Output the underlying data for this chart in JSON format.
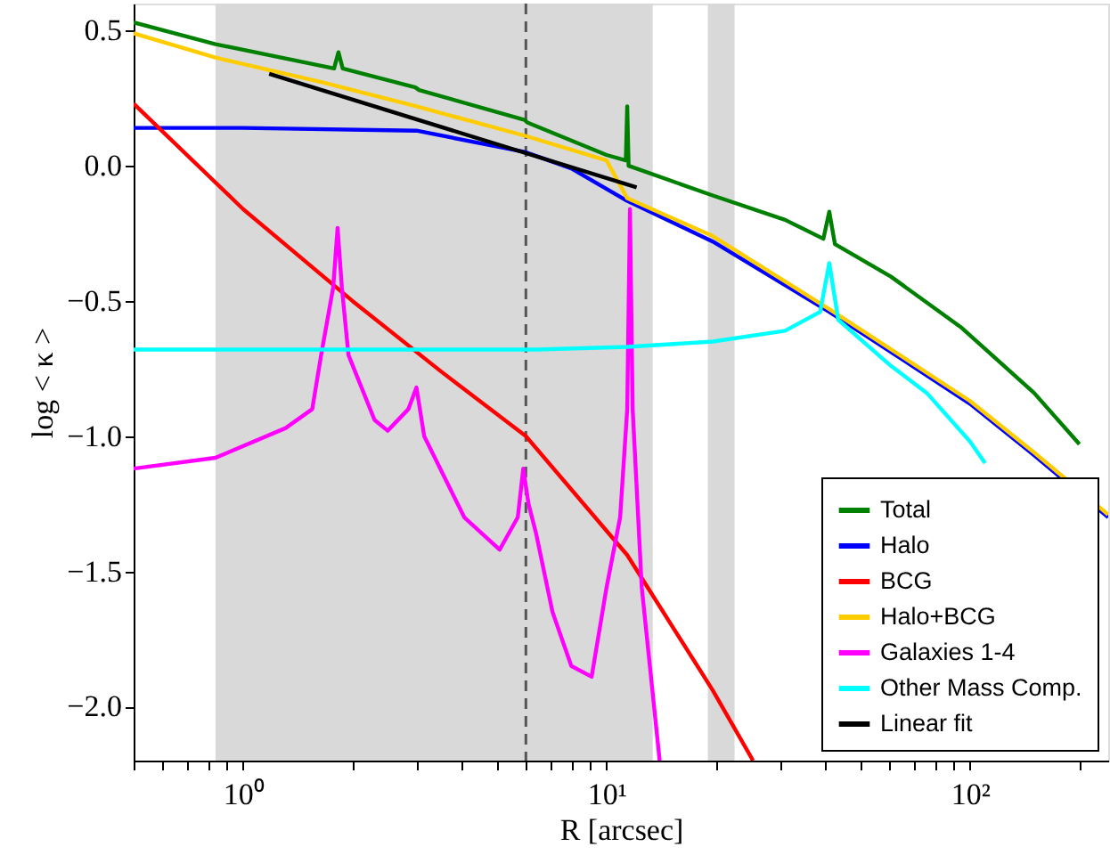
{
  "chart_data": {
    "type": "line",
    "xlabel": "R [arcsec]",
    "ylabel": "log < κ >",
    "log": "x",
    "xlim": [
      0.5,
      240
    ],
    "ylim": [
      -2.2,
      0.6
    ],
    "xticks": [
      {
        "value": 0.5,
        "label": null
      },
      {
        "value": 0.6,
        "label": null
      },
      {
        "value": 0.7,
        "label": null
      },
      {
        "value": 0.8,
        "label": null
      },
      {
        "value": 0.9,
        "label": null
      },
      {
        "value": 1,
        "label": "10⁰"
      },
      {
        "value": 2,
        "label": null
      },
      {
        "value": 3,
        "label": null
      },
      {
        "value": 4,
        "label": null
      },
      {
        "value": 5,
        "label": null
      },
      {
        "value": 6,
        "label": null
      },
      {
        "value": 7,
        "label": null
      },
      {
        "value": 8,
        "label": null
      },
      {
        "value": 9,
        "label": null
      },
      {
        "value": 10,
        "label": "10¹"
      },
      {
        "value": 20,
        "label": null
      },
      {
        "value": 30,
        "label": null
      },
      {
        "value": 40,
        "label": null
      },
      {
        "value": 50,
        "label": null
      },
      {
        "value": 60,
        "label": null
      },
      {
        "value": 70,
        "label": null
      },
      {
        "value": 80,
        "label": null
      },
      {
        "value": 90,
        "label": null
      },
      {
        "value": 100,
        "label": "10²"
      },
      {
        "value": 200,
        "label": null
      }
    ],
    "yticks": [
      {
        "value": -2.0,
        "label": "−2.0"
      },
      {
        "value": -1.5,
        "label": "−1.5"
      },
      {
        "value": -1.0,
        "label": "−1.0"
      },
      {
        "value": -0.5,
        "label": "−0.5"
      },
      {
        "value": 0.0,
        "label": "0.0"
      },
      {
        "value": 0.5,
        "label": "0.5"
      }
    ],
    "grid": false,
    "legend": "bottom right",
    "marker": "none",
    "line_style": "solid",
    "bands": [
      {
        "axis": "x",
        "from": 0.84,
        "to": 13.4,
        "color": "#d9d9d9"
      },
      {
        "axis": "x",
        "from": 19.0,
        "to": 22.5,
        "color": "#d9d9d9"
      }
    ],
    "ref_lines": [
      {
        "axis": "x",
        "value": 6.0,
        "color": "#555555",
        "line_style": "dashed"
      }
    ],
    "series": [
      {
        "name": "Total",
        "color": "#008000",
        "x": [
          0.5,
          0.84,
          1.64,
          1.78,
          1.83,
          1.88,
          2.98,
          3.05,
          5.95,
          6.05,
          10,
          11.3,
          11.4,
          11.5,
          19.6,
          31,
          39.5,
          41,
          42.5,
          60.6,
          95,
          150,
          200
        ],
        "values": [
          0.53,
          0.45,
          0.37,
          0.36,
          0.42,
          0.36,
          0.29,
          0.28,
          0.17,
          0.16,
          0.04,
          0.02,
          0.22,
          0.0,
          -0.11,
          -0.2,
          -0.27,
          -0.17,
          -0.29,
          -0.41,
          -0.6,
          -0.84,
          -1.03
        ]
      },
      {
        "name": "Halo",
        "color": "#0000ff",
        "x": [
          0.5,
          1,
          3,
          6,
          8,
          11.4,
          19.6,
          41,
          100,
          150,
          240
        ],
        "values": [
          0.14,
          0.14,
          0.13,
          0.05,
          -0.01,
          -0.13,
          -0.28,
          -0.54,
          -0.88,
          -1.07,
          -1.3
        ]
      },
      {
        "name": "BCG",
        "color": "#ff0000",
        "x": [
          0.5,
          1,
          2,
          3.5,
          6,
          11.4,
          19.6,
          25.3
        ],
        "values": [
          0.23,
          -0.16,
          -0.5,
          -0.76,
          -1.0,
          -1.44,
          -1.94,
          -2.2
        ]
      },
      {
        "name": "Halo+BCG",
        "color": "#ffcc00",
        "x": [
          0.5,
          0.84,
          1.64,
          3,
          6,
          10,
          11.4,
          19.6,
          41,
          100,
          150,
          240
        ],
        "values": [
          0.49,
          0.4,
          0.31,
          0.22,
          0.11,
          0.02,
          -0.12,
          -0.26,
          -0.53,
          -0.87,
          -1.06,
          -1.29
        ]
      },
      {
        "name": "Galaxies 1-4",
        "color": "#ff00ff",
        "x": [
          0.5,
          0.84,
          1.31,
          1.55,
          1.64,
          1.77,
          1.82,
          1.87,
          1.95,
          2.3,
          2.5,
          2.85,
          3.0,
          3.15,
          4.06,
          5.08,
          5.7,
          5.9,
          6.1,
          6.4,
          7.1,
          8.0,
          9.1,
          10,
          10.9,
          11.4,
          11.6,
          11.8,
          12.5,
          14.0
        ],
        "values": [
          -1.12,
          -1.08,
          -0.97,
          -0.9,
          -0.7,
          -0.45,
          -0.23,
          -0.45,
          -0.7,
          -0.94,
          -0.98,
          -0.9,
          -0.82,
          -1.0,
          -1.3,
          -1.42,
          -1.3,
          -1.12,
          -1.25,
          -1.36,
          -1.65,
          -1.85,
          -1.89,
          -1.56,
          -1.3,
          -0.9,
          -0.16,
          -0.9,
          -1.56,
          -2.2
        ]
      },
      {
        "name": "Other Mass Comp.",
        "color": "#00ffff",
        "x": [
          0.5,
          6.4,
          11.4,
          19.6,
          31,
          38.7,
          41,
          43.4,
          60.6,
          76,
          100,
          110
        ],
        "values": [
          -0.68,
          -0.68,
          -0.67,
          -0.65,
          -0.61,
          -0.54,
          -0.36,
          -0.57,
          -0.74,
          -0.84,
          -1.02,
          -1.1
        ]
      },
      {
        "name": "Linear fit",
        "color": "#000000",
        "x": [
          1.18,
          12.1
        ],
        "values": [
          0.34,
          -0.08
        ]
      }
    ]
  }
}
